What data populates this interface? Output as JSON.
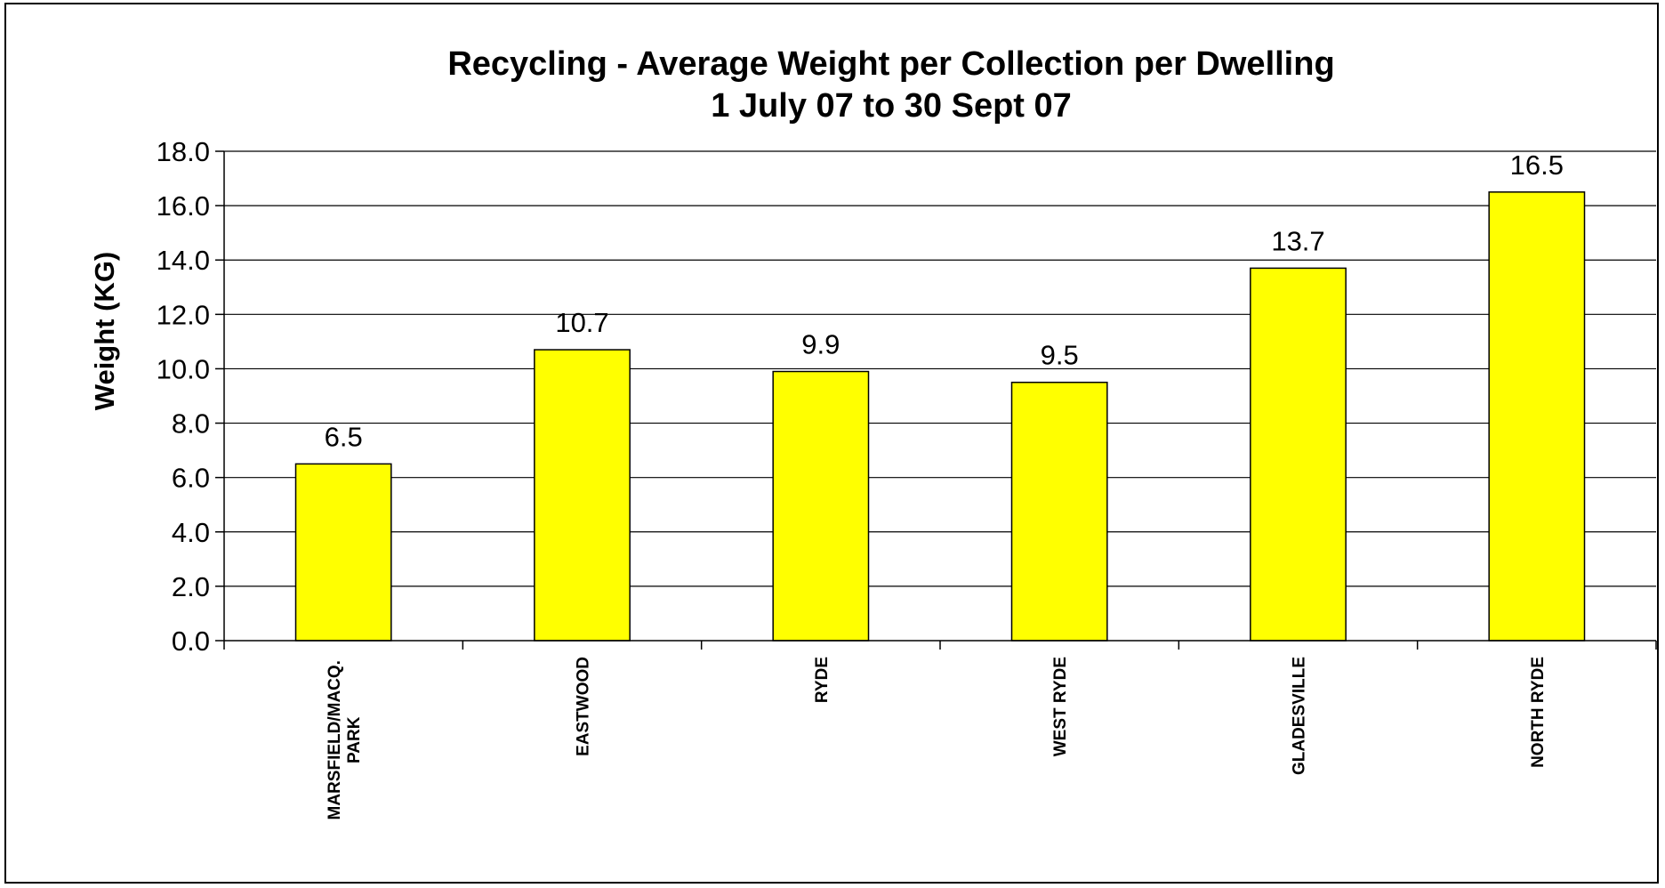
{
  "chart_data": {
    "type": "bar",
    "title": "Recycling - Average Weight per Collection per Dwelling",
    "subtitle": "1 July 07 to 30 Sept 07",
    "xlabel": "",
    "ylabel": "Weight (KG)",
    "ylim": [
      0,
      18
    ],
    "ytick_step": 2,
    "ytick_decimals": 1,
    "grid": true,
    "legend": "none",
    "bar_color": "#FFFF00",
    "categories": [
      "MARSFIELD/MACQ. PARK",
      "EASTWOOD",
      "RYDE",
      "WEST RYDE",
      "GLADESVILLE",
      "NORTH RYDE"
    ],
    "values": [
      6.5,
      10.7,
      9.9,
      9.5,
      13.7,
      16.5
    ],
    "value_labels": [
      "6.5",
      "10.7",
      "9.9",
      "9.5",
      "13.7",
      "16.5"
    ]
  }
}
